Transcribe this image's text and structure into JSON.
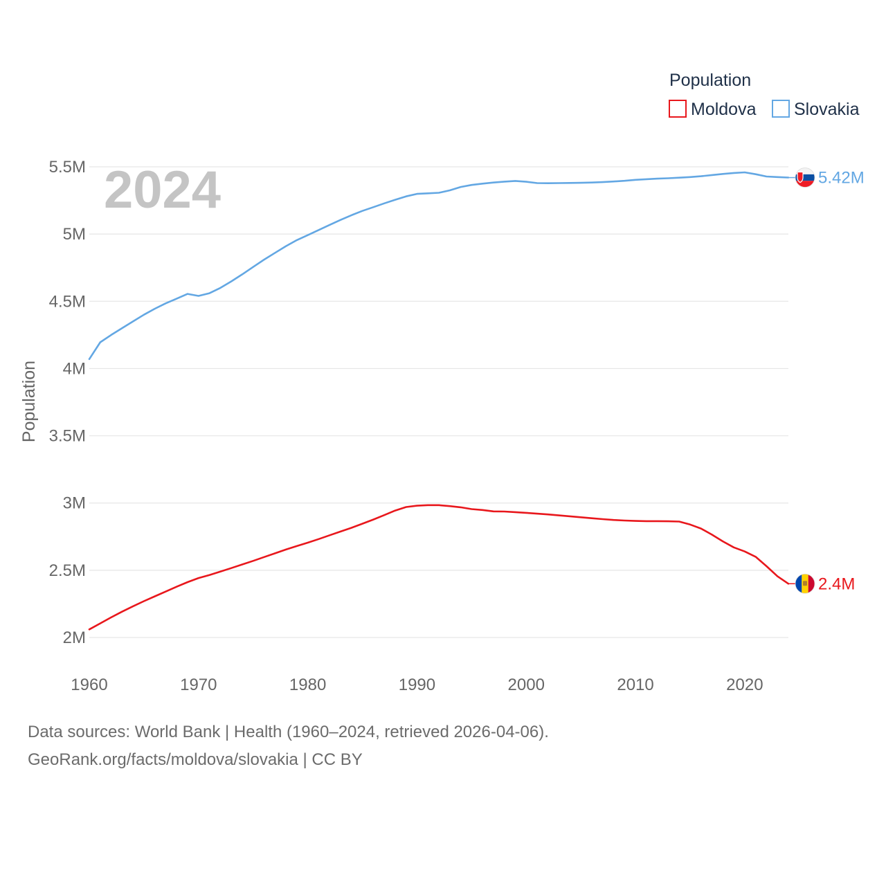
{
  "chart_data": {
    "type": "line",
    "current_year": "2024",
    "ylabel": "Population",
    "legend": {
      "title": "Population",
      "position": "top-right"
    },
    "xlim": [
      1960,
      2024
    ],
    "ylim": [
      2000000,
      5500000
    ],
    "x_ticks": [
      1960,
      1970,
      1980,
      1990,
      2000,
      2010,
      2020
    ],
    "x_tick_labels": [
      "1960",
      "1970",
      "1980",
      "1990",
      "2000",
      "2010",
      "2020"
    ],
    "y_ticks": [
      2000000,
      2500000,
      3000000,
      3500000,
      4000000,
      4500000,
      5000000,
      5500000
    ],
    "y_tick_labels": [
      "2M",
      "2.5M",
      "3M",
      "3.5M",
      "4M",
      "4.5M",
      "5M",
      "5.5M"
    ],
    "series": [
      {
        "name": "Moldova",
        "color": "#e8171c",
        "end_label": "2.4M",
        "flag": "moldova-flag",
        "x": [
          1960,
          1961,
          1962,
          1963,
          1964,
          1965,
          1966,
          1967,
          1968,
          1969,
          1970,
          1971,
          1972,
          1973,
          1974,
          1975,
          1976,
          1977,
          1978,
          1979,
          1980,
          1981,
          1982,
          1983,
          1984,
          1985,
          1986,
          1987,
          1988,
          1989,
          1990,
          1991,
          1992,
          1993,
          1994,
          1995,
          1996,
          1997,
          1998,
          1999,
          2000,
          2001,
          2002,
          2003,
          2004,
          2005,
          2006,
          2007,
          2008,
          2009,
          2010,
          2011,
          2012,
          2013,
          2014,
          2015,
          2016,
          2017,
          2018,
          2019,
          2020,
          2021,
          2022,
          2023,
          2024
        ],
        "values": [
          2060000,
          2105000,
          2150000,
          2192000,
          2232000,
          2270000,
          2306000,
          2342000,
          2378000,
          2412000,
          2442000,
          2465000,
          2490000,
          2516000,
          2543000,
          2570000,
          2598000,
          2626000,
          2654000,
          2680000,
          2705000,
          2732000,
          2760000,
          2788000,
          2816000,
          2846000,
          2877000,
          2910000,
          2944000,
          2970000,
          2980000,
          2984000,
          2984000,
          2977000,
          2968000,
          2955000,
          2948000,
          2938000,
          2937000,
          2932000,
          2927000,
          2921000,
          2915000,
          2908000,
          2901000,
          2894000,
          2887000,
          2880000,
          2874000,
          2870000,
          2867000,
          2865000,
          2865000,
          2864000,
          2862000,
          2840000,
          2810000,
          2765000,
          2715000,
          2670000,
          2640000,
          2600000,
          2530000,
          2455000,
          2400000
        ]
      },
      {
        "name": "Slovakia",
        "color": "#63a7e3",
        "end_label": "5.42M",
        "flag": "slovakia-flag",
        "x": [
          1960,
          1961,
          1962,
          1963,
          1964,
          1965,
          1966,
          1967,
          1968,
          1969,
          1970,
          1971,
          1972,
          1973,
          1974,
          1975,
          1976,
          1977,
          1978,
          1979,
          1980,
          1981,
          1982,
          1983,
          1984,
          1985,
          1986,
          1987,
          1988,
          1989,
          1990,
          1991,
          1992,
          1993,
          1994,
          1995,
          1996,
          1997,
          1998,
          1999,
          2000,
          2001,
          2002,
          2003,
          2004,
          2005,
          2006,
          2007,
          2008,
          2009,
          2010,
          2011,
          2012,
          2013,
          2014,
          2015,
          2016,
          2017,
          2018,
          2019,
          2020,
          2021,
          2022,
          2023,
          2024
        ],
        "values": [
          4070000,
          4195000,
          4250000,
          4300000,
          4350000,
          4400000,
          4445000,
          4485000,
          4520000,
          4555000,
          4540000,
          4560000,
          4600000,
          4648000,
          4700000,
          4755000,
          4810000,
          4860000,
          4910000,
          4955000,
          4992000,
          5030000,
          5068000,
          5105000,
          5140000,
          5172000,
          5200000,
          5228000,
          5255000,
          5280000,
          5299000,
          5303000,
          5307000,
          5325000,
          5350000,
          5365000,
          5375000,
          5383000,
          5390000,
          5395000,
          5389000,
          5379000,
          5378000,
          5379000,
          5380000,
          5381000,
          5383000,
          5386000,
          5391000,
          5396000,
          5403000,
          5408000,
          5412000,
          5415000,
          5419000,
          5424000,
          5430000,
          5439000,
          5447000,
          5454000,
          5459000,
          5445000,
          5428000,
          5424000,
          5420000
        ]
      }
    ]
  },
  "footer": {
    "line1": "Data sources: World Bank | Health (1960–2024, retrieved 2026-04-06).",
    "line2": "GeoRank.org/facts/moldova/slovakia | CC BY"
  }
}
